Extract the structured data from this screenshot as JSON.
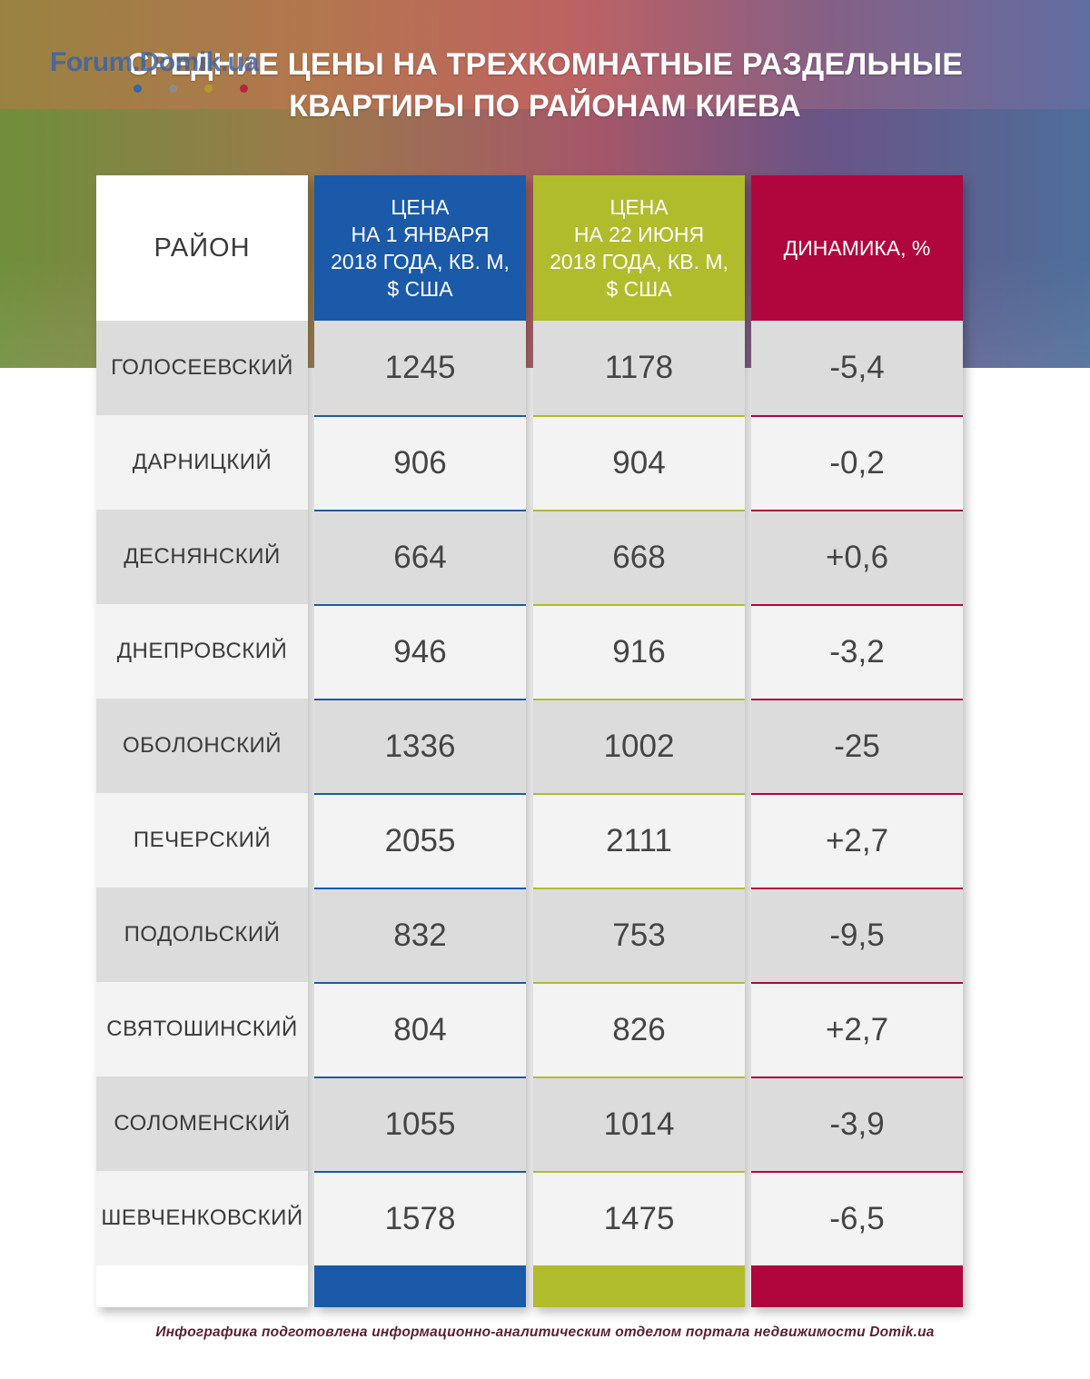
{
  "logo": {
    "text": "Forum.Domik.ua",
    "dots": [
      "#3d63a5",
      "#8c8c8c",
      "#b59a2c",
      "#b3253d"
    ]
  },
  "title": {
    "line1": "СРЕДНИЕ ЦЕНЫ НА ТРЕХКОМНАТНЫЕ РАЗДЕЛЬНЫЕ",
    "line2": "КВАРТИРЫ ПО РАЙОНАМ КИЕВА"
  },
  "colors": {
    "jan": "#1a5aa8",
    "jun": "#b0bc2c",
    "dyn": "#b0063d"
  },
  "chart_data": {
    "type": "table",
    "columns": [
      "РАЙОН",
      "ЦЕНА\nНА 1 ЯНВАРЯ\n2018 ГОДА, КВ. М,\n$ США",
      "ЦЕНА\nНА 22 ИЮНЯ\n2018 ГОДА, КВ. М,\n$ США",
      "ДИНАМИКА, %"
    ],
    "rows": [
      [
        "ГОЛОСЕЕВСКИЙ",
        "1245",
        "1178",
        "-5,4"
      ],
      [
        "ДАРНИЦКИЙ",
        "906",
        "904",
        "-0,2"
      ],
      [
        "ДЕСНЯНСКИЙ",
        "664",
        "668",
        "+0,6"
      ],
      [
        "ДНЕПРОВСКИЙ",
        "946",
        "916",
        "-3,2"
      ],
      [
        "ОБОЛОНСКИЙ",
        "1336",
        "1002",
        "-25"
      ],
      [
        "ПЕЧЕРСКИЙ",
        "2055",
        "2111",
        "+2,7"
      ],
      [
        "ПОДОЛЬСКИЙ",
        "832",
        "753",
        "-9,5"
      ],
      [
        "СВЯТОШИНСКИЙ",
        "804",
        "826",
        "+2,7"
      ],
      [
        "СОЛОМЕНСКИЙ",
        "1055",
        "1014",
        "-3,9"
      ],
      [
        "ШЕВЧЕНКОВСКИЙ",
        "1578",
        "1475",
        "-6,5"
      ]
    ]
  },
  "credit": "Инфографика подготовлена информационно-аналитическим отделом портала недвижимости Domik.ua"
}
